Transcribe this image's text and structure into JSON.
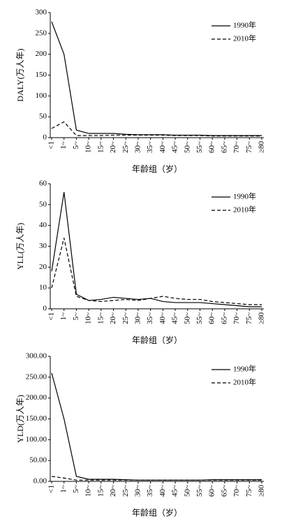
{
  "chart_data": [
    {
      "type": "line",
      "y_label": "DALY(万人年)",
      "x_label": "年龄组（岁）",
      "categories": [
        "<1",
        "1~",
        "5~",
        "10~",
        "15~",
        "20~",
        "25~",
        "30~",
        "35~",
        "40~",
        "45~",
        "50~",
        "55~",
        "60~",
        "65~",
        "70~",
        "75~",
        "≥80"
      ],
      "series": [
        {
          "name": "1990年",
          "color": "#000000",
          "line_style": "solid",
          "values": [
            278,
            200,
            18,
            10,
            10,
            10,
            8,
            7,
            7,
            7,
            6,
            6,
            6,
            5,
            5,
            5,
            5,
            5
          ]
        },
        {
          "name": "2010年",
          "color": "#000000",
          "line_style": "dashed",
          "values": [
            22,
            38,
            5,
            5,
            5,
            6,
            6,
            6,
            6,
            6,
            5,
            5,
            5,
            4,
            4,
            4,
            4,
            4
          ]
        }
      ],
      "ylim": [
        0,
        300
      ],
      "yticks": [
        0,
        50,
        100,
        150,
        200,
        250,
        300
      ],
      "legend": "top-right",
      "grid": false
    },
    {
      "type": "line",
      "y_label": "YLL(万人年)",
      "x_label": "年龄组（岁）",
      "categories": [
        "<1",
        "1~",
        "5~",
        "10~",
        "15~",
        "20~",
        "25~",
        "30~",
        "35~",
        "40~",
        "45~",
        "50~",
        "55~",
        "60~",
        "65~",
        "70~",
        "75~",
        "≥80"
      ],
      "series": [
        {
          "name": "1990年",
          "color": "#000000",
          "line_style": "solid",
          "values": [
            18,
            56,
            7,
            4,
            4.5,
            5.5,
            5,
            4.5,
            5,
            3.5,
            3,
            3,
            3,
            2.5,
            2,
            1.5,
            1,
            1
          ]
        },
        {
          "name": "2010年",
          "color": "#000000",
          "line_style": "dashed",
          "values": [
            10,
            34,
            6,
            4,
            3.5,
            4,
            4.5,
            4,
            5,
            6,
            5,
            4.5,
            4.5,
            3.5,
            3,
            2.5,
            2,
            2
          ]
        }
      ],
      "ylim": [
        0,
        60
      ],
      "yticks": [
        0,
        10,
        20,
        30,
        40,
        50,
        60
      ],
      "legend": "top-right",
      "grid": false
    },
    {
      "type": "line",
      "y_label": "YLD(万人年)",
      "x_label": "年龄组（岁）",
      "categories": [
        "<1",
        "1~",
        "5~",
        "10~",
        "15~",
        "20~",
        "25~",
        "30~",
        "35~",
        "40~",
        "45~",
        "50~",
        "55~",
        "60~",
        "65~",
        "70~",
        "75~",
        "≥80"
      ],
      "series": [
        {
          "name": "1990年",
          "color": "#000000",
          "line_style": "solid",
          "values": [
            260,
            150,
            12,
            5,
            5,
            5,
            4,
            3,
            3,
            3,
            3,
            3,
            3,
            4,
            4,
            4,
            4,
            4
          ]
        },
        {
          "name": "2010年",
          "color": "#000000",
          "line_style": "dashed",
          "values": [
            12,
            8,
            3,
            3,
            3,
            3,
            3,
            3,
            3,
            3,
            3,
            3,
            3,
            3,
            3,
            3,
            3,
            3
          ]
        }
      ],
      "ylim": [
        0,
        300
      ],
      "yticks": [
        {
          "value": 0,
          "label": "0.00"
        },
        {
          "value": 50,
          "label": "50.00"
        },
        {
          "value": 100,
          "label": "100.00"
        },
        {
          "value": 150,
          "label": "150.00"
        },
        {
          "value": 200,
          "label": "200.00"
        },
        {
          "value": 250,
          "label": "250.00"
        },
        {
          "value": 300,
          "label": "300.00"
        }
      ],
      "legend": "top-right",
      "grid": false
    }
  ]
}
